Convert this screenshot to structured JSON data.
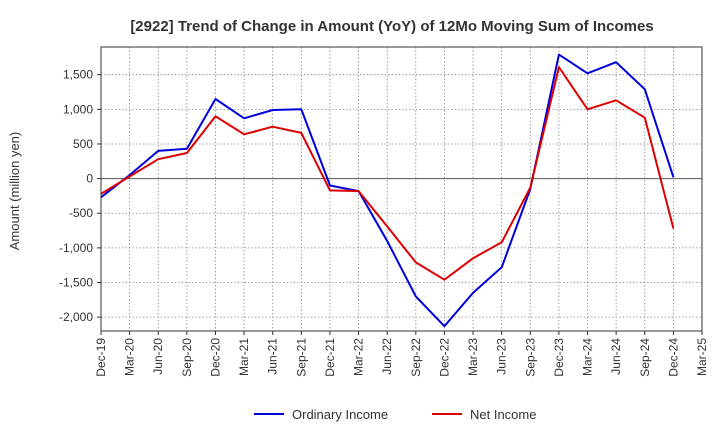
{
  "chart_data": {
    "type": "line",
    "title": "[2922]  Trend of Change in Amount (YoY) of 12Mo Moving Sum of Incomes",
    "ylabel": "Amount (million yen)",
    "xlabel": "",
    "categories": [
      "Dec-19",
      "Mar-20",
      "Jun-20",
      "Sep-20",
      "Dec-20",
      "Mar-21",
      "Jun-21",
      "Sep-21",
      "Dec-21",
      "Mar-22",
      "Jun-22",
      "Sep-22",
      "Dec-22",
      "Mar-23",
      "Jun-23",
      "Sep-23",
      "Dec-23",
      "Mar-24",
      "Jun-24",
      "Sep-24",
      "Dec-24",
      "Mar-25"
    ],
    "ylim": [
      -2200,
      1900
    ],
    "yticks": [
      -2000,
      -1500,
      -1000,
      -500,
      0,
      500,
      1000,
      1500
    ],
    "ytick_labels": [
      "-2,000",
      "-1,500",
      "-1,000",
      "-500",
      "0",
      "500",
      "1,000",
      "1,500"
    ],
    "grid": true,
    "legend_position": "bottom",
    "series": [
      {
        "name": "Ordinary Income",
        "color": "#0000dd",
        "values": [
          -270,
          50,
          400,
          430,
          1150,
          870,
          990,
          1000,
          -100,
          -180,
          -900,
          -1700,
          -2130,
          -1650,
          -1280,
          -150,
          1790,
          1520,
          1680,
          1290,
          20,
          null
        ]
      },
      {
        "name": "Net Income",
        "color": "#dd0000",
        "values": [
          -220,
          30,
          280,
          370,
          900,
          640,
          750,
          660,
          -170,
          -180,
          -690,
          -1210,
          -1460,
          -1150,
          -920,
          -130,
          1610,
          1000,
          1130,
          880,
          -720,
          null
        ]
      }
    ]
  }
}
